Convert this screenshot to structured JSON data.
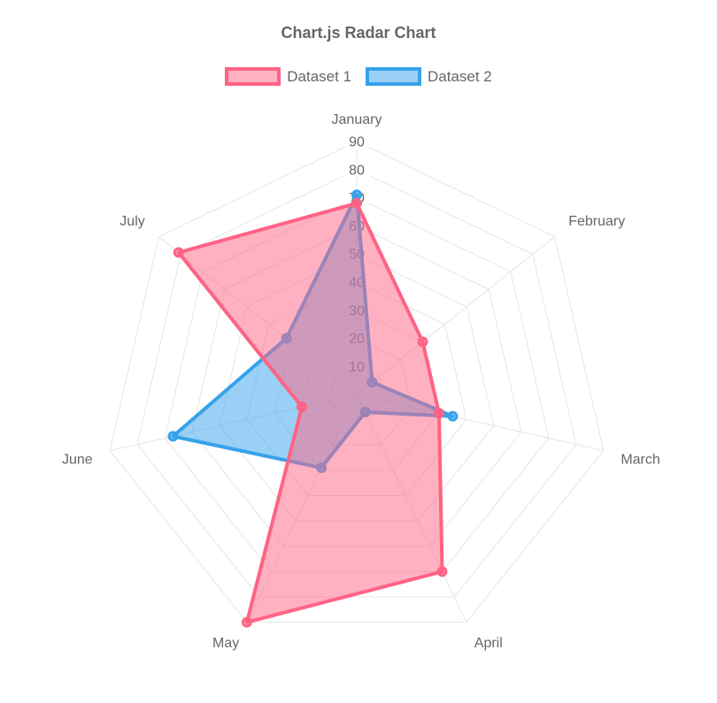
{
  "chart_data": {
    "type": "radar",
    "title": "Chart.js Radar Chart",
    "categories": [
      "January",
      "February",
      "March",
      "April",
      "May",
      "June",
      "July"
    ],
    "series": [
      {
        "name": "Dataset 1",
        "values": [
          68,
          30,
          30,
          70,
          90,
          20,
          81
        ],
        "border_color": "#FF6384",
        "fill_color": "rgba(255,99,132,0.5)"
      },
      {
        "name": "Dataset 2",
        "values": [
          71,
          7,
          35,
          7,
          29,
          67,
          32
        ],
        "border_color": "#36A2EB",
        "fill_color": "rgba(54,162,235,0.5)"
      }
    ],
    "r_axis": {
      "min": 0,
      "max": 90,
      "step": 10,
      "ticks": [
        10,
        20,
        30,
        40,
        50,
        60,
        70,
        80,
        90
      ]
    },
    "legend_position": "top",
    "grid": true,
    "colors": {
      "text": "#666666",
      "grid": "#e5e5e5",
      "tick_backdrop": "rgba(255,255,255,0.75)"
    }
  }
}
